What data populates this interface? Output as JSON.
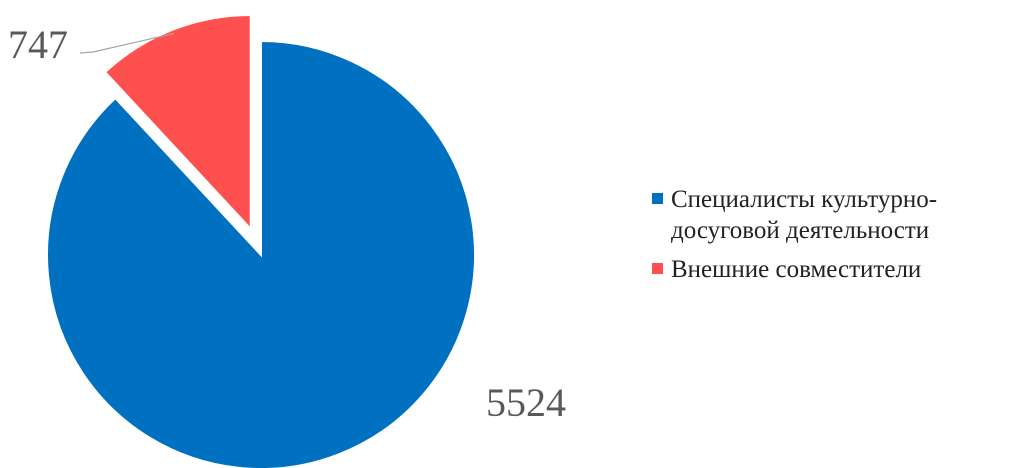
{
  "chart_data": {
    "type": "pie",
    "title": "",
    "series": [
      {
        "values": [
          5524,
          747
        ]
      }
    ],
    "categories": [
      "Специалисты культурно-досуговой деятельности",
      "Внешние совместители"
    ],
    "legend_lines": [
      [
        "Специалисты культурно-",
        "досуговой деятельности"
      ],
      [
        "Внешние совместители"
      ]
    ],
    "data_labels": [
      "5524",
      "747"
    ],
    "colors": [
      "#0070C0",
      "#FF5050"
    ],
    "label_color": "#595959",
    "exploded_slice": "Внешние совместители",
    "legend_position": "right"
  }
}
